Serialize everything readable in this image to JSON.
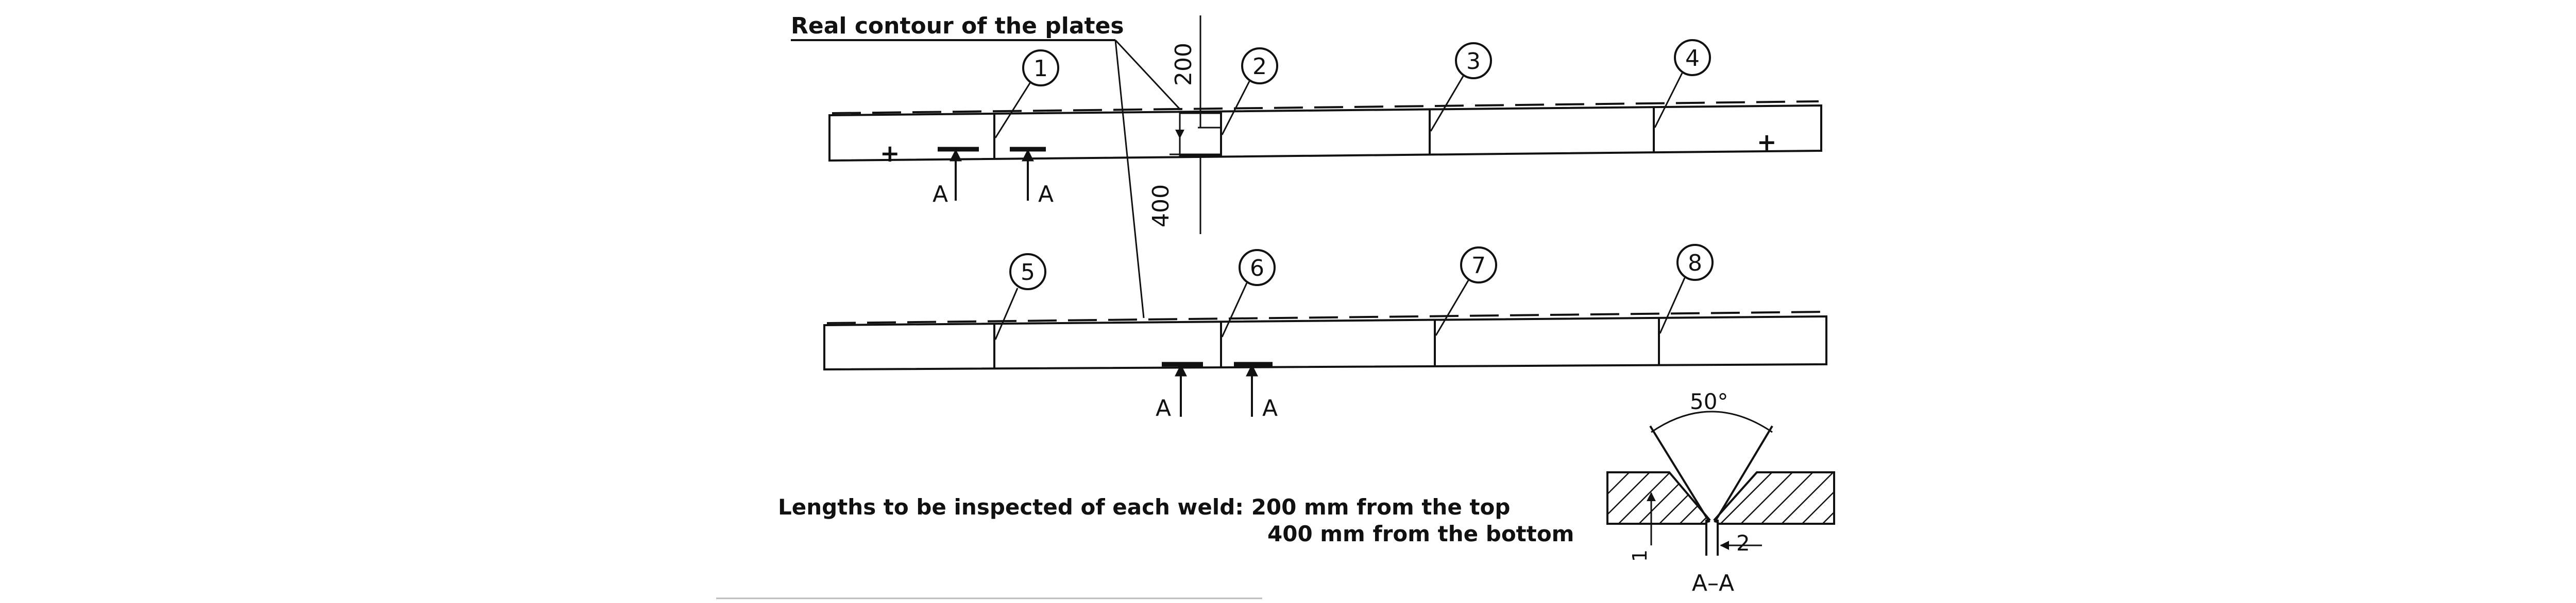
{
  "caption": "Real contour of the plates",
  "dims": {
    "top": "200",
    "bottom": "400"
  },
  "section": {
    "angle": "50°",
    "gap": "2",
    "root": "1",
    "label": "A–A"
  },
  "section_marks": [
    "A",
    "A",
    "A",
    "A"
  ],
  "weld_numbers": [
    "1",
    "2",
    "3",
    "4",
    "5",
    "6",
    "7",
    "8"
  ],
  "note": {
    "line1": "Lengths to be inspected of each weld: 200 mm from the top",
    "line2": "400 mm from the bottom"
  },
  "markers": [
    "+",
    "+"
  ]
}
